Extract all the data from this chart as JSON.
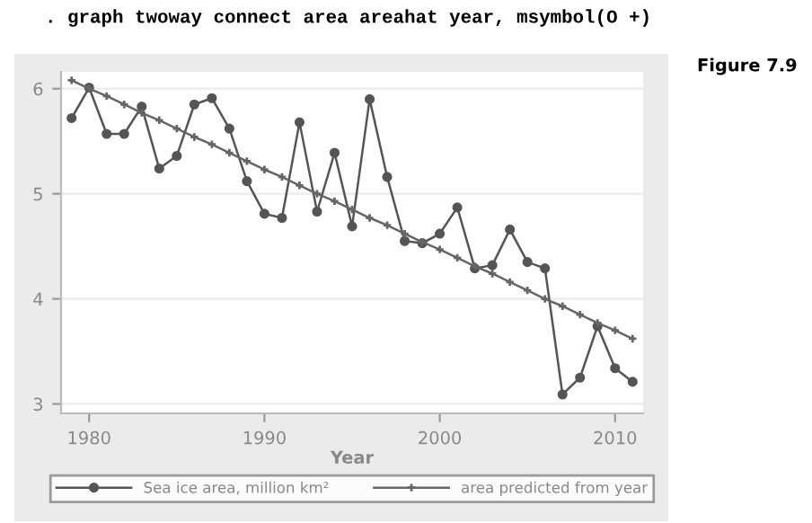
{
  "chart_data": {
    "type": "line",
    "xlabel": "Year",
    "x": [
      1979,
      1980,
      1981,
      1982,
      1983,
      1984,
      1985,
      1986,
      1987,
      1988,
      1989,
      1990,
      1991,
      1992,
      1993,
      1994,
      1995,
      1996,
      1997,
      1998,
      1999,
      2000,
      2001,
      2002,
      2003,
      2004,
      2005,
      2006,
      2007,
      2008,
      2009,
      2010,
      2011
    ],
    "series": [
      {
        "name": "Sea ice area, million km²",
        "color": "#555555",
        "marker": "circle",
        "values": [
          5.72,
          6.01,
          5.57,
          5.57,
          5.83,
          5.24,
          5.36,
          5.85,
          5.91,
          5.62,
          5.12,
          4.81,
          4.77,
          5.68,
          4.83,
          5.39,
          4.69,
          5.9,
          5.16,
          4.55,
          4.53,
          4.62,
          4.87,
          4.29,
          4.32,
          4.66,
          4.35,
          4.29,
          3.09,
          3.25,
          3.74,
          3.34,
          3.21
        ]
      },
      {
        "name": "area predicted from year",
        "color": "#666666",
        "marker": "cross",
        "values": [
          6.08,
          6.0,
          5.93,
          5.85,
          5.77,
          5.7,
          5.62,
          5.54,
          5.47,
          5.39,
          5.31,
          5.23,
          5.16,
          5.08,
          5.0,
          4.93,
          4.85,
          4.77,
          4.7,
          4.62,
          4.54,
          4.47,
          4.39,
          4.31,
          4.24,
          4.16,
          4.08,
          4.0,
          3.93,
          3.85,
          3.77,
          3.7,
          3.62
        ]
      }
    ],
    "xlim": [
      1978.4,
      2011.6
    ],
    "xticks": [
      1980,
      1990,
      2000,
      2010
    ],
    "ylim": [
      2.91,
      6.16
    ],
    "yticks": [
      3,
      4,
      5,
      6
    ],
    "grid": "y",
    "legend": "bottom",
    "line_style": "solid",
    "annotations": [
      ". graph twoway connect area areahat year, msymbol(O +)",
      "Figure 7.9"
    ]
  }
}
